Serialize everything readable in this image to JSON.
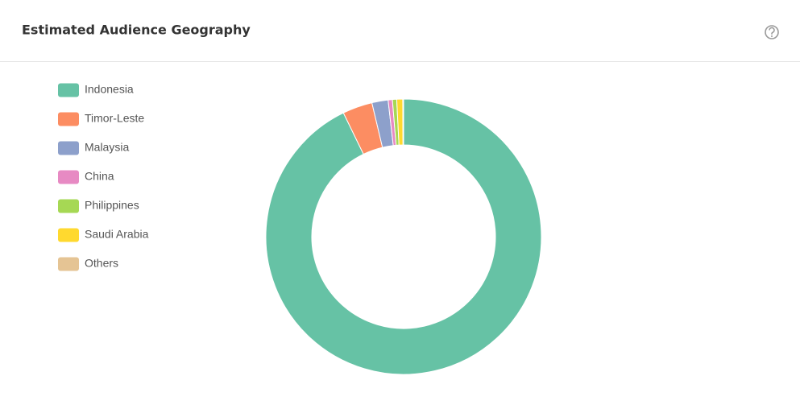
{
  "chart_data": {
    "type": "donut",
    "title": "Estimated Audience Geography",
    "categories": [
      "Indonesia",
      "Timor-Leste",
      "Malaysia",
      "China",
      "Philippines",
      "Saudi Arabia",
      "Others"
    ],
    "values": [
      92.8,
      3.5,
      1.9,
      0.5,
      0.5,
      0.7,
      0.1
    ],
    "colors": [
      "#66c2a5",
      "#fc8d62",
      "#8da0cb",
      "#e78ac3",
      "#a6d854",
      "#ffd92f",
      "#e5c494"
    ],
    "legend": "left"
  }
}
